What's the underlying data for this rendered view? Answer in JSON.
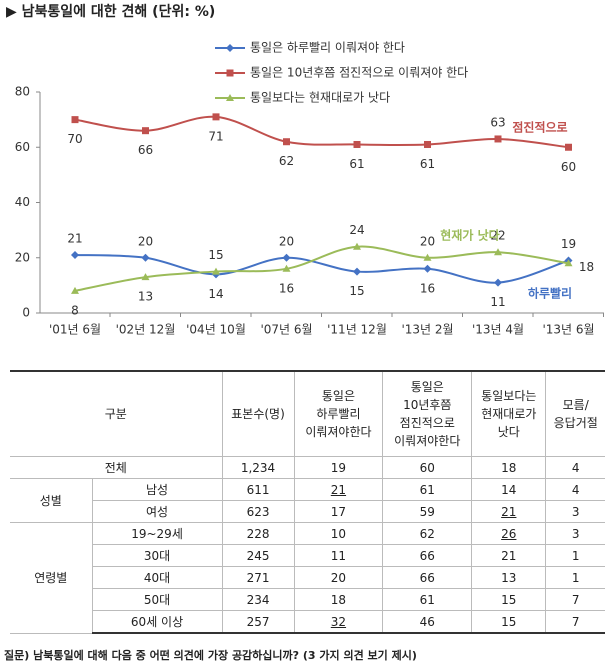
{
  "chart_data": {
    "type": "line",
    "title": "▶ 남북통일에 대한 견해 (단위: %)",
    "categories": [
      "'01년 6월",
      "'02년 12월",
      "'04년 10월",
      "'07년 6월",
      "'11년 12월",
      "'13년 2월",
      "'13년 4월",
      "'13년 6월"
    ],
    "series": [
      {
        "name": "통일은 하루빨리 이뤄져야 한다",
        "color": "#4472c4",
        "values": [
          21,
          20,
          14,
          20,
          15,
          16,
          11,
          19
        ]
      },
      {
        "name": "통일은 10년후쯤 점진적으로 이뤄져야 한다",
        "color": "#c0504d",
        "values": [
          70,
          66,
          71,
          62,
          61,
          61,
          63,
          60
        ]
      },
      {
        "name": "통일보다는 현재대로가 낫다",
        "color": "#9bbb59",
        "values": [
          8,
          13,
          15,
          16,
          24,
          20,
          22,
          18
        ]
      }
    ],
    "annotations": [
      "하루빨리",
      "점진적으로",
      "현재가 낫다"
    ],
    "ylim": [
      0,
      80
    ],
    "yticks": [
      0,
      20,
      40,
      60,
      80
    ],
    "grid": false,
    "data_labels": true
  },
  "table": {
    "header": [
      "구분",
      "표본수(명)",
      "통일은\n하루빨리\n이뤄져야한다",
      "통일은\n10년후쯤\n점진적으로\n이뤄져야한다",
      "통일보다는\n현재대로가\n낫다",
      "모름/\n응답거절"
    ],
    "total": {
      "label": "전체",
      "cells": [
        "1,234",
        "19",
        "60",
        "18",
        "4"
      ]
    },
    "groups": [
      {
        "name": "성별",
        "rows": [
          {
            "label": "남성",
            "cells": [
              "611",
              {
                "text": "21",
                "underline": true
              },
              "61",
              "14",
              "4"
            ]
          },
          {
            "label": "여성",
            "cells": [
              "623",
              "17",
              "59",
              {
                "text": "21",
                "underline": true
              },
              "3"
            ]
          }
        ]
      },
      {
        "name": "연령별",
        "rows": [
          {
            "label": "19~29세",
            "cells": [
              "228",
              "10",
              "62",
              {
                "text": "26",
                "underline": true
              },
              "3"
            ]
          },
          {
            "label": "30대",
            "cells": [
              "245",
              "11",
              "66",
              "21",
              "1"
            ]
          },
          {
            "label": "40대",
            "cells": [
              "271",
              "20",
              "66",
              "13",
              "1"
            ]
          },
          {
            "label": "50대",
            "cells": [
              "234",
              "18",
              "61",
              "15",
              "7"
            ]
          },
          {
            "label": "60세 이상",
            "cells": [
              "257",
              {
                "text": "32",
                "underline": true
              },
              "46",
              "15",
              "7"
            ]
          }
        ]
      }
    ]
  },
  "footnote": "질문) 남북통일에 대해 다음 중 어떤 의견에 가장 공감하십니까? (3 가지 의견 보기 제시)"
}
